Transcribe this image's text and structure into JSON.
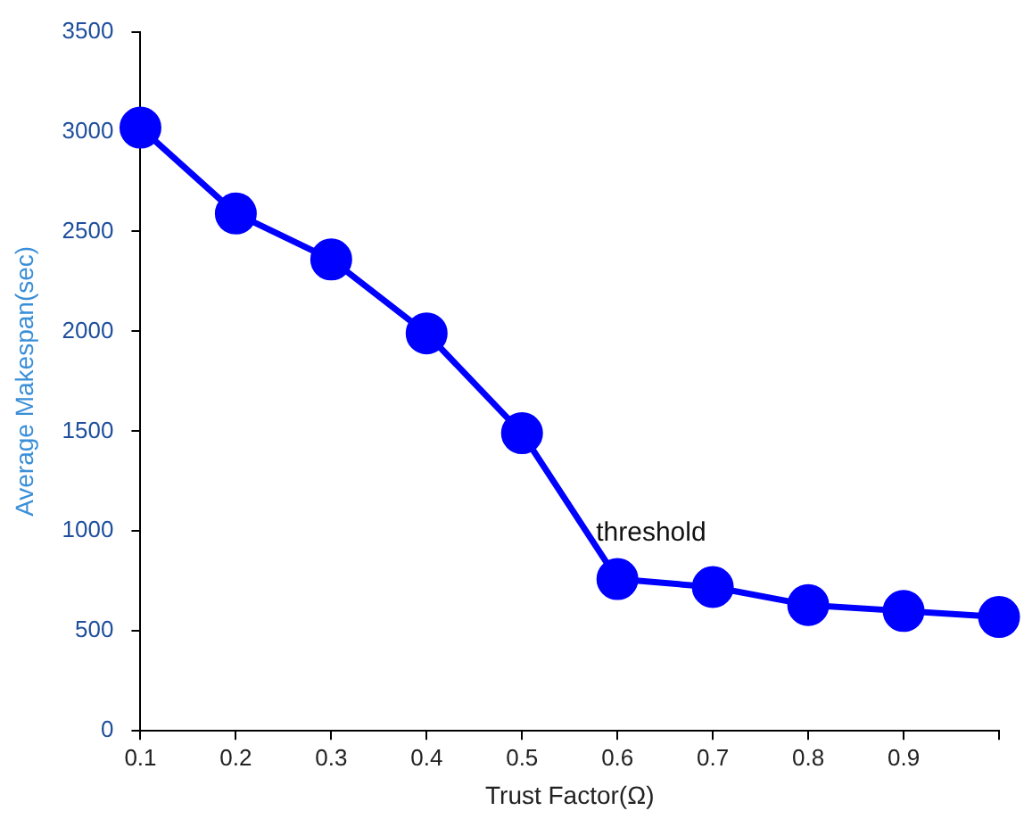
{
  "chart_data": {
    "type": "line",
    "xlabel": "Trust Factor(Ω)",
    "ylabel": "Average Makespan(sec)",
    "x": [
      0.1,
      0.2,
      0.3,
      0.4,
      0.5,
      0.6,
      0.7,
      0.8,
      0.9,
      1.0
    ],
    "series": [
      {
        "color": "#0000ff",
        "values": [
          3020,
          2590,
          2360,
          1990,
          1490,
          760,
          720,
          630,
          600,
          570
        ]
      }
    ],
    "xlim": [
      0.1,
      1.0
    ],
    "xticks": [
      0.1,
      0.2,
      0.3,
      0.4,
      0.5,
      0.6,
      0.7,
      0.8,
      0.9,
      {
        "value": 1.0,
        "label": null
      }
    ],
    "ylim": [
      0,
      3500
    ],
    "yticks": [
      0,
      500,
      1000,
      1500,
      2000,
      2500,
      3000,
      3500
    ],
    "grid": false,
    "legend": false,
    "marker": "circle",
    "line_style": "solid",
    "annotations": [
      {
        "text": "threshold",
        "x": 0.6,
        "y": 760
      }
    ]
  }
}
